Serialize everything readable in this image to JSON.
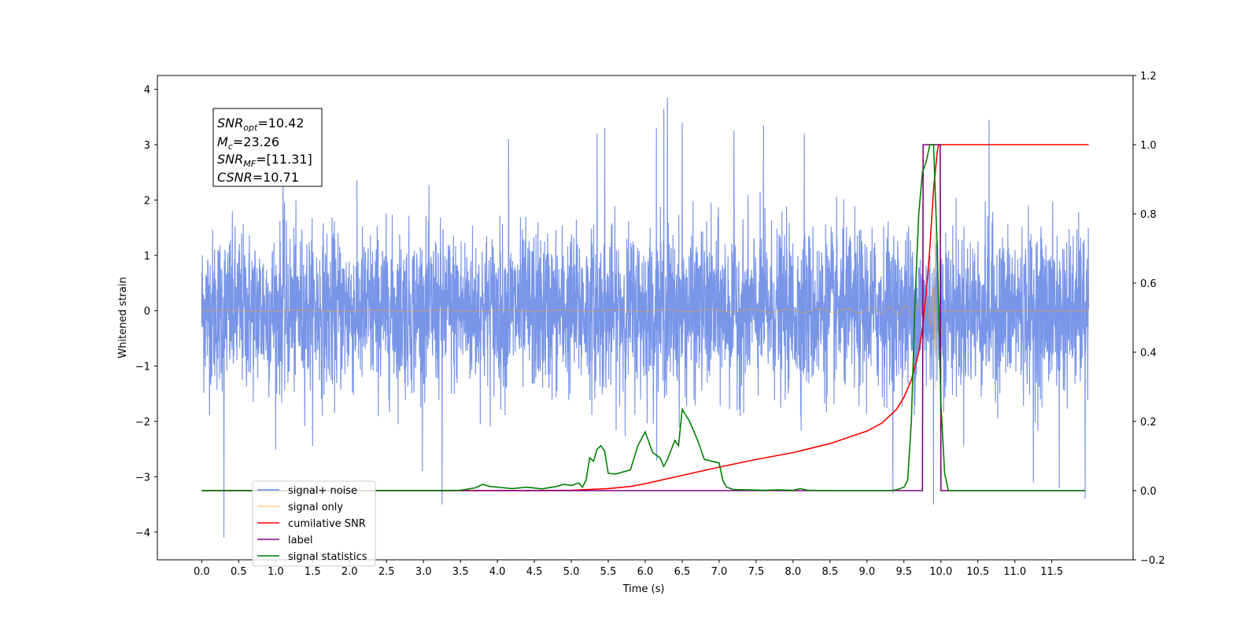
{
  "chart_data": {
    "type": "line",
    "title": "",
    "xlabel": "Time (s)",
    "ylabel": "Whitened strain",
    "y2label": "",
    "xlim": [
      -0.6,
      12.6
    ],
    "ylim": [
      -4.5,
      4.25
    ],
    "y2lim": [
      -0.2,
      1.2
    ],
    "x_ticks": [
      "0.0",
      "0.5",
      "1.0",
      "1.5",
      "2.0",
      "2.5",
      "3.0",
      "3.5",
      "4.0",
      "4.5",
      "5.0",
      "5.5",
      "6.0",
      "6.5",
      "7.0",
      "7.5",
      "8.0",
      "8.5",
      "9.0",
      "9.5",
      "10.0",
      "10.5",
      "11.0",
      "11.5"
    ],
    "y_ticks": [
      "−4",
      "−3",
      "−2",
      "−1",
      "0",
      "1",
      "2",
      "3",
      "4"
    ],
    "y2_ticks": [
      "−0.2",
      "0.0",
      "0.2",
      "0.4",
      "0.6",
      "0.8",
      "1.0",
      "1.2"
    ],
    "grid": false,
    "legend_position": "lower-left",
    "annotation_lines": [
      {
        "name": "SNR",
        "sub": "opt",
        "value": "=10.42"
      },
      {
        "name": "M",
        "sub": "c",
        "value": "=23.26"
      },
      {
        "name": "SNR",
        "sub": "MF",
        "value": "=[11.31]"
      },
      {
        "name": "CSNR",
        "sub": "",
        "value": "=10.71"
      }
    ],
    "series": [
      {
        "name": "signal+ noise",
        "axis": "left",
        "color": "#6a89e5",
        "kind": "noise",
        "t_start": 0.0,
        "t_end": 12.0,
        "envelope_std": 0.72,
        "spikes": [
          [
            0.3,
            -4.1
          ],
          [
            1.1,
            2.9
          ],
          [
            3.25,
            -3.5
          ],
          [
            4.15,
            3.1
          ],
          [
            5.35,
            3.2
          ],
          [
            5.45,
            3.3
          ],
          [
            6.25,
            3.65
          ],
          [
            6.15,
            3.3
          ],
          [
            6.3,
            3.85
          ],
          [
            6.5,
            3.4
          ],
          [
            7.2,
            3.25
          ],
          [
            7.6,
            3.35
          ],
          [
            8.15,
            3.2
          ],
          [
            9.35,
            -3.3
          ],
          [
            9.9,
            -3.5
          ],
          [
            10.65,
            3.45
          ],
          [
            11.25,
            -3.1
          ],
          [
            11.6,
            -3.2
          ],
          [
            11.95,
            -3.4
          ]
        ]
      },
      {
        "name": "signal only",
        "axis": "left",
        "color": "#f5a623",
        "kind": "chirp",
        "t_merger": 9.93,
        "t_end": 12.0
      },
      {
        "name": "cumilative SNR",
        "axis": "right",
        "color": "#ff0000",
        "x": [
          0.0,
          4.5,
          5.0,
          5.5,
          5.8,
          6.0,
          6.5,
          7.0,
          7.5,
          8.0,
          8.5,
          9.0,
          9.2,
          9.4,
          9.5,
          9.6,
          9.7,
          9.75,
          9.8,
          9.85,
          9.9,
          9.95,
          9.97,
          10.0,
          12.0
        ],
        "y": [
          0.0,
          0.0,
          0.001,
          0.006,
          0.012,
          0.02,
          0.044,
          0.068,
          0.09,
          0.11,
          0.136,
          0.172,
          0.195,
          0.235,
          0.27,
          0.32,
          0.4,
          0.47,
          0.57,
          0.7,
          0.87,
          0.98,
          1.0,
          1.0,
          1.0
        ]
      },
      {
        "name": "label",
        "axis": "right",
        "color": "#800080",
        "x": [
          0.0,
          9.75,
          9.76,
          9.99,
          10.0,
          11.95
        ],
        "y": [
          0.0,
          0.0,
          1.0,
          1.0,
          0.0,
          0.0
        ]
      },
      {
        "name": "signal statistics",
        "axis": "right",
        "color": "#008000",
        "x": [
          0.0,
          3.2,
          3.5,
          3.7,
          3.8,
          3.9,
          4.0,
          4.2,
          4.4,
          4.6,
          4.8,
          4.9,
          5.0,
          5.1,
          5.15,
          5.2,
          5.25,
          5.3,
          5.35,
          5.4,
          5.45,
          5.5,
          5.6,
          5.8,
          5.9,
          6.0,
          6.1,
          6.2,
          6.25,
          6.3,
          6.4,
          6.45,
          6.5,
          6.6,
          6.7,
          6.8,
          7.0,
          7.05,
          7.1,
          7.2,
          7.4,
          7.6,
          7.8,
          8.0,
          8.1,
          8.2,
          8.5,
          9.3,
          9.4,
          9.5,
          9.55,
          9.6,
          9.65,
          9.7,
          9.75,
          9.8,
          9.85,
          9.9,
          9.95,
          10.0,
          10.05,
          10.1,
          11.95
        ],
        "y": [
          0.0,
          0.0,
          0.001,
          0.008,
          0.018,
          0.012,
          0.01,
          0.006,
          0.01,
          0.005,
          0.012,
          0.018,
          0.015,
          0.022,
          0.01,
          0.03,
          0.095,
          0.085,
          0.12,
          0.13,
          0.115,
          0.05,
          0.048,
          0.06,
          0.13,
          0.17,
          0.11,
          0.095,
          0.07,
          0.09,
          0.145,
          0.13,
          0.235,
          0.2,
          0.15,
          0.09,
          0.08,
          0.03,
          0.01,
          0.003,
          0.002,
          0.001,
          0.002,
          0.001,
          0.006,
          0.001,
          0.0,
          0.0,
          0.002,
          0.01,
          0.03,
          0.2,
          0.55,
          0.8,
          0.92,
          0.95,
          1.0,
          1.0,
          0.7,
          0.25,
          0.05,
          0.0,
          0.0
        ]
      }
    ],
    "legend_entries": [
      {
        "name": "signal+ noise",
        "color": "#6a89e5"
      },
      {
        "name": "signal only",
        "color": "#f5a623"
      },
      {
        "name": "cumilative SNR",
        "color": "#ff0000"
      },
      {
        "name": "label",
        "color": "#800080"
      },
      {
        "name": "signal statistics",
        "color": "#008000"
      }
    ]
  }
}
